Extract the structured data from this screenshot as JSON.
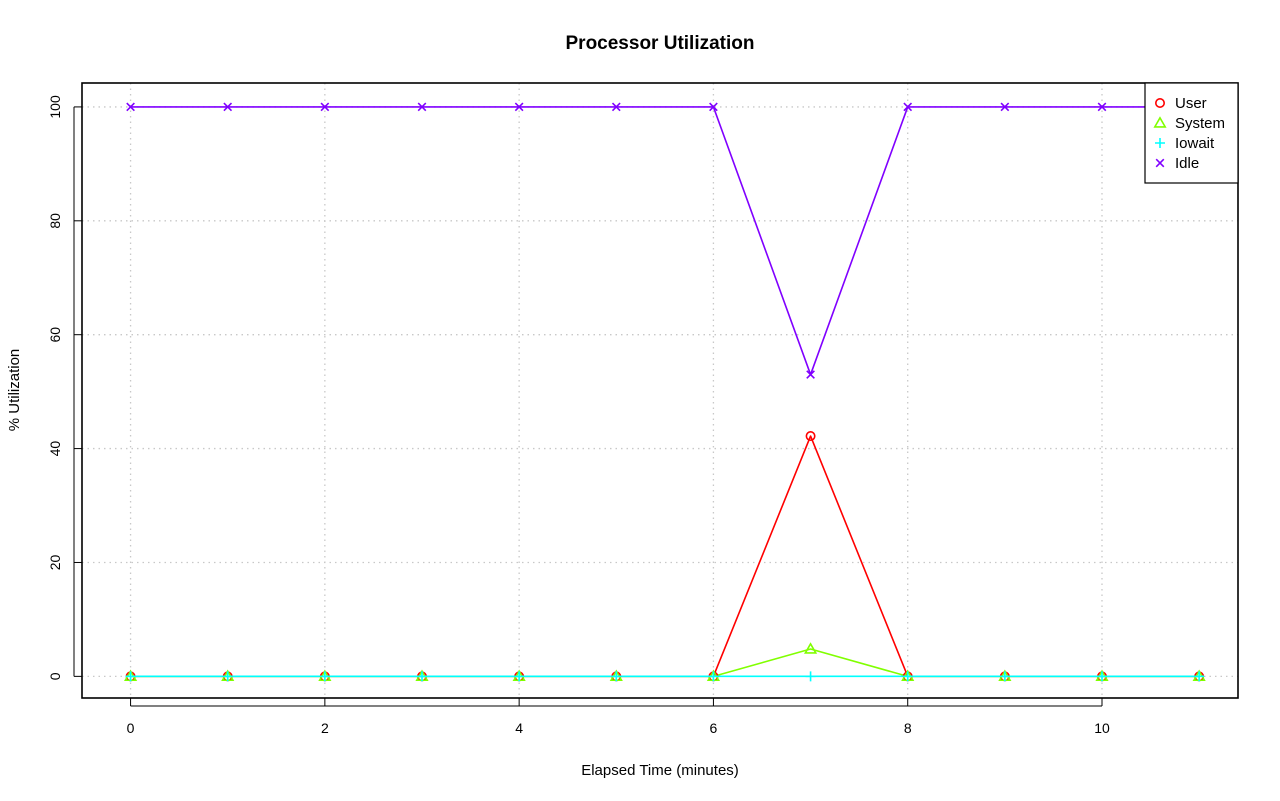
{
  "chart_data": {
    "type": "line",
    "title": "Processor Utilization",
    "xlabel": "Elapsed Time (minutes)",
    "ylabel": "% Utilization",
    "xlim": [
      -0.5,
      11.4
    ],
    "ylim": [
      -3.8,
      104.2
    ],
    "x_ticks": [
      "0",
      "2",
      "4",
      "6",
      "8",
      "10"
    ],
    "y_ticks": [
      "0",
      "20",
      "40",
      "60",
      "80",
      "100"
    ],
    "grid": true,
    "legend_position": "top-right",
    "x": [
      0,
      1,
      2,
      3,
      4,
      5,
      6,
      7,
      8,
      9,
      10,
      11
    ],
    "series": [
      {
        "name": "User",
        "color": "#ff0000",
        "marker": "circle",
        "values": [
          0,
          0,
          0,
          0,
          0,
          0,
          0,
          42.2,
          0,
          0,
          0,
          0
        ]
      },
      {
        "name": "System",
        "color": "#80ff00",
        "marker": "triangle",
        "values": [
          0,
          0,
          0,
          0,
          0,
          0,
          0,
          4.8,
          0,
          0,
          0,
          0
        ]
      },
      {
        "name": "Iowait",
        "color": "#00ffff",
        "marker": "plus",
        "values": [
          0,
          0,
          0,
          0,
          0,
          0,
          0,
          0,
          0,
          0,
          0,
          0
        ]
      },
      {
        "name": "Idle",
        "color": "#8000ff",
        "marker": "cross",
        "values": [
          100,
          100,
          100,
          100,
          100,
          100,
          100,
          53,
          100,
          100,
          100,
          100
        ]
      }
    ]
  }
}
